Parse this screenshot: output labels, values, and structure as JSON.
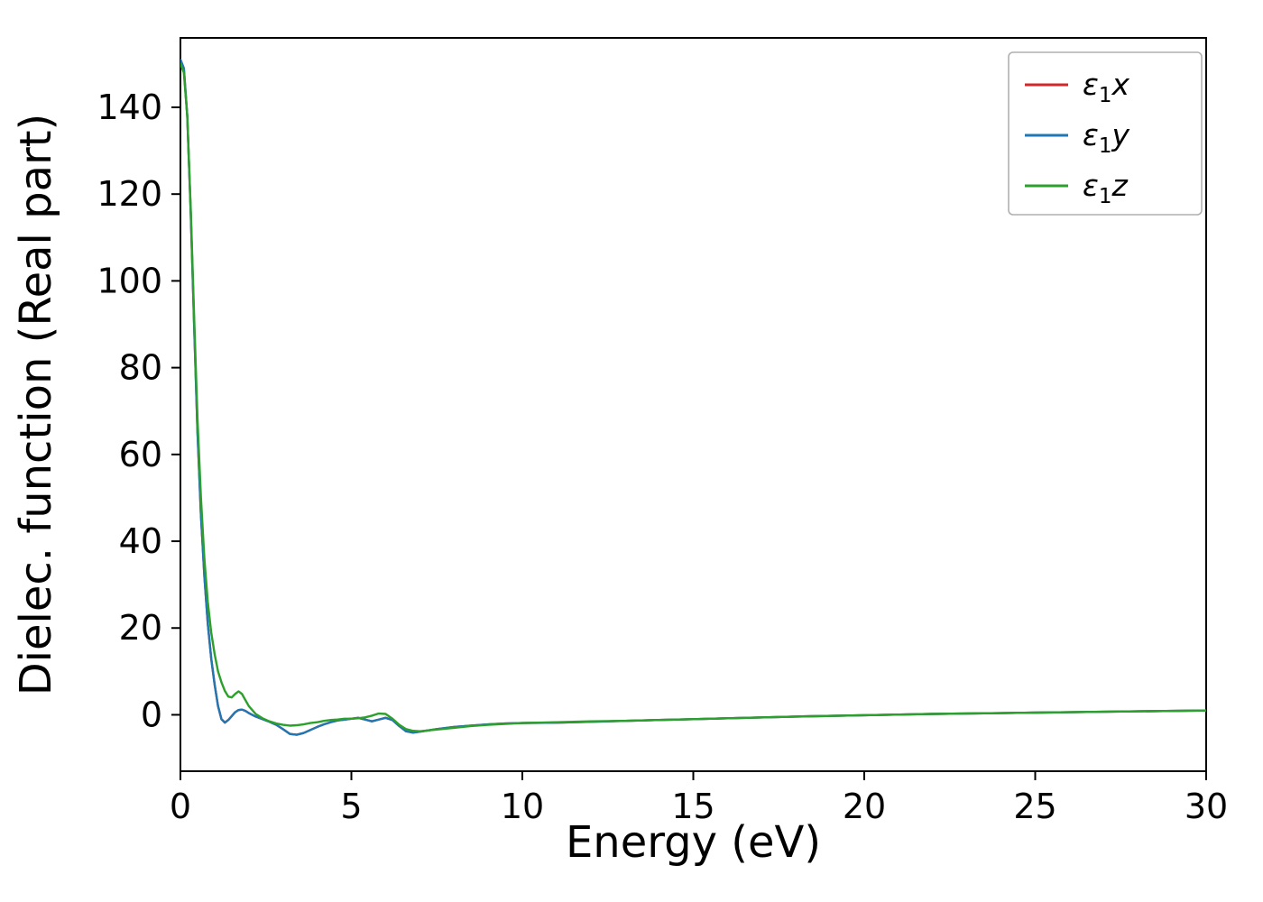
{
  "figure": {
    "background": "#ffffff",
    "frame_color": "#000000",
    "tick_color": "#000000",
    "legend_border_color": "#b0b0b0"
  },
  "chart_data": {
    "type": "line",
    "title": "",
    "xlabel": "Energy (eV)",
    "ylabel": "Dielec. function (Real part)",
    "xlim": [
      0,
      30
    ],
    "ylim": [
      -13,
      156
    ],
    "xticks": [
      0,
      5,
      10,
      15,
      20,
      25,
      30
    ],
    "yticks": [
      0,
      20,
      40,
      60,
      80,
      100,
      120,
      140
    ],
    "grid": false,
    "legend_position": "upper right",
    "x": [
      0,
      0.1,
      0.2,
      0.3,
      0.4,
      0.5,
      0.6,
      0.7,
      0.8,
      0.9,
      1.0,
      1.1,
      1.2,
      1.3,
      1.4,
      1.5,
      1.6,
      1.7,
      1.8,
      1.9,
      2.0,
      2.2,
      2.4,
      2.6,
      2.8,
      3.0,
      3.2,
      3.4,
      3.6,
      3.8,
      4.0,
      4.2,
      4.4,
      4.6,
      4.8,
      5.0,
      5.2,
      5.4,
      5.6,
      5.8,
      6.0,
      6.2,
      6.4,
      6.6,
      6.8,
      7.0,
      7.5,
      8.0,
      8.5,
      9.0,
      9.5,
      10.0,
      11.0,
      12.0,
      13.0,
      14.0,
      15.0,
      16.0,
      18.0,
      20.0,
      22.0,
      24.0,
      26.0,
      28.0,
      30.0
    ],
    "series": [
      {
        "name": "eps1x",
        "label_symbol": "ε",
        "label_sub": "1",
        "label_var": "x",
        "color": "#d62728",
        "values": [
          151,
          149,
          138,
          116,
          90,
          65,
          46,
          32,
          21,
          13,
          7,
          2,
          -1,
          -1.8,
          -1.2,
          -0.3,
          0.6,
          1.1,
          1.2,
          0.9,
          0.4,
          -0.4,
          -1.0,
          -1.6,
          -2.3,
          -3.3,
          -4.4,
          -4.6,
          -4.2,
          -3.5,
          -2.8,
          -2.2,
          -1.7,
          -1.3,
          -1.1,
          -0.9,
          -0.7,
          -1.1,
          -1.5,
          -1.1,
          -0.7,
          -1.2,
          -2.6,
          -3.8,
          -4.1,
          -3.9,
          -3.3,
          -2.8,
          -2.5,
          -2.2,
          -2.0,
          -1.9,
          -1.8,
          -1.6,
          -1.4,
          -1.2,
          -1.0,
          -0.8,
          -0.4,
          -0.1,
          0.2,
          0.4,
          0.6,
          0.8,
          1.0
        ]
      },
      {
        "name": "eps1y",
        "label_symbol": "ε",
        "label_sub": "1",
        "label_var": "y",
        "color": "#1f77b4",
        "values": [
          151,
          149,
          138,
          116,
          90,
          65,
          46,
          32,
          21,
          13,
          7,
          2,
          -1,
          -1.8,
          -1.2,
          -0.3,
          0.6,
          1.1,
          1.2,
          0.9,
          0.4,
          -0.4,
          -1.0,
          -1.6,
          -2.3,
          -3.3,
          -4.4,
          -4.6,
          -4.2,
          -3.5,
          -2.8,
          -2.2,
          -1.7,
          -1.3,
          -1.1,
          -0.9,
          -0.7,
          -1.1,
          -1.5,
          -1.1,
          -0.7,
          -1.2,
          -2.6,
          -3.8,
          -4.1,
          -3.9,
          -3.3,
          -2.8,
          -2.5,
          -2.2,
          -2.0,
          -1.9,
          -1.8,
          -1.6,
          -1.4,
          -1.2,
          -1.0,
          -0.8,
          -0.4,
          -0.1,
          0.2,
          0.4,
          0.6,
          0.8,
          1.0
        ]
      },
      {
        "name": "eps1z",
        "label_symbol": "ε",
        "label_sub": "1",
        "label_var": "z",
        "color": "#2ca02c",
        "values": [
          150,
          148,
          138,
          117,
          92,
          68,
          50,
          36,
          26,
          19,
          14,
          10,
          7.5,
          5.5,
          4.2,
          4.0,
          4.8,
          5.4,
          4.8,
          3.4,
          2.0,
          0.2,
          -0.8,
          -1.5,
          -2.0,
          -2.3,
          -2.5,
          -2.4,
          -2.2,
          -1.9,
          -1.7,
          -1.4,
          -1.2,
          -1.1,
          -0.9,
          -0.9,
          -0.8,
          -0.6,
          -0.2,
          0.3,
          0.2,
          -0.9,
          -2.3,
          -3.3,
          -3.7,
          -3.8,
          -3.4,
          -3.0,
          -2.6,
          -2.3,
          -2.1,
          -1.9,
          -1.7,
          -1.5,
          -1.4,
          -1.2,
          -1.0,
          -0.8,
          -0.4,
          -0.1,
          0.2,
          0.4,
          0.6,
          0.8,
          1.0
        ]
      }
    ]
  }
}
